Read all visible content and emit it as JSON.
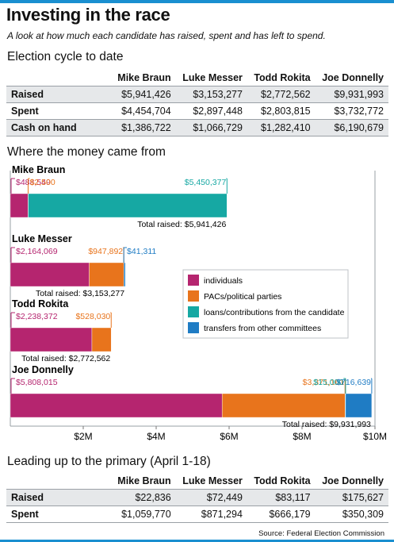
{
  "title": "Investing in the race",
  "subtitle": "A look at how much each candidate has raised, spent and has left to spend.",
  "cycle": {
    "heading": "Election cycle to date",
    "columns": [
      "Mike Braun",
      "Luke Messer",
      "Todd Rokita",
      "Joe Donnelly"
    ],
    "rows": [
      {
        "label": "Raised",
        "values": [
          "$5,941,426",
          "$3,153,277",
          "$2,772,562",
          "$9,931,993"
        ]
      },
      {
        "label": "Spent",
        "values": [
          "$4,454,704",
          "$2,897,448",
          "$2,803,815",
          "$3,732,772"
        ]
      },
      {
        "label": "Cash on hand",
        "values": [
          "$1,386,722",
          "$1,066,729",
          "$1,282,410",
          "$6,190,679"
        ]
      }
    ]
  },
  "primary": {
    "heading": "Leading up to the primary (April 1-18)",
    "columns": [
      "Mike Braun",
      "Luke Messer",
      "Todd Rokita",
      "Joe Donnelly"
    ],
    "rows": [
      {
        "label": "Raised",
        "values": [
          "$22,836",
          "$72,449",
          "$83,117",
          "$175,627"
        ]
      },
      {
        "label": "Spent",
        "values": [
          "$1,059,770",
          "$871,294",
          "$666,179",
          "$350,309"
        ]
      }
    ]
  },
  "source": "Source: Federal Election Commission",
  "colors": {
    "individuals": "#b5256f",
    "pacs": "#e8741c",
    "loans": "#16a8a3",
    "transfers": "#1f7cc4",
    "accent": "#1a8fd0"
  },
  "chart_data": {
    "type": "bar",
    "stacked": true,
    "orientation": "horizontal",
    "title": "Where the money came from",
    "xlim": [
      0,
      10000000
    ],
    "x_ticks": [
      "$2M",
      "$4M",
      "$6M",
      "$8M",
      "$10M"
    ],
    "series": [
      {
        "name": "individuals",
        "color": "#b5256f"
      },
      {
        "name": "PACs/political parties",
        "color": "#e8741c"
      },
      {
        "name": "loans/contributions from the candidate",
        "color": "#16a8a3"
      },
      {
        "name": "transfers from other committees",
        "color": "#1f7cc4"
      }
    ],
    "candidates": [
      {
        "name": "Mike Braun",
        "values": [
          488549,
          2500,
          5450377,
          0
        ],
        "labels": [
          "$488,549",
          "$2,500",
          "$5,450,377",
          ""
        ],
        "total_label": "Total raised: $5,941,426"
      },
      {
        "name": "Luke Messer",
        "values": [
          2164069,
          947892,
          0,
          41311
        ],
        "labels": [
          "$2,164,069",
          "$947,892",
          "",
          "$41,311"
        ],
        "total_label": "Total raised: $3,153,277"
      },
      {
        "name": "Todd Rokita",
        "values": [
          2238372,
          528030,
          0,
          0
        ],
        "labels": [
          "$2,238,372",
          "$528,030",
          "",
          ""
        ],
        "total_label": "Total raised: $2,772,562"
      },
      {
        "name": "Joe Donnelly",
        "values": [
          5808015,
          3371161,
          15000,
          716639
        ],
        "labels": [
          "$5,808,015",
          "$3,371,161",
          "$15,000",
          "$716,639"
        ],
        "total_label": "Total raised: $9,931,993"
      }
    ]
  }
}
